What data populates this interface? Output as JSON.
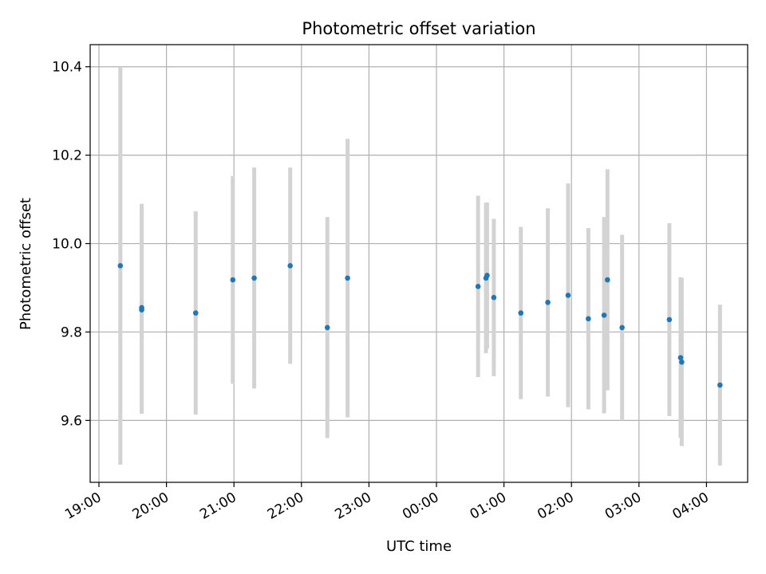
{
  "chart_data": {
    "type": "scatter",
    "title": "Photometric offset variation",
    "xlabel": "UTC time",
    "ylabel": "Photometric offset",
    "x_tick_labels": [
      "19:00",
      "20:00",
      "21:00",
      "22:00",
      "23:00",
      "00:00",
      "01:00",
      "02:00",
      "03:00",
      "04:00"
    ],
    "y_tick_labels": [
      "9.6",
      "9.8",
      "10.0",
      "10.2",
      "10.4"
    ],
    "y_ticks": [
      9.6,
      9.8,
      10.0,
      10.2,
      10.4
    ],
    "xlim": [
      "19:00",
      "04:28"
    ],
    "ylim": [
      9.46,
      10.45
    ],
    "grid": true,
    "marker_color": "#1f77b4",
    "errorbar_color": "#d3d3d3",
    "points": [
      {
        "x": "19:19",
        "y": 9.95,
        "err": 0.45
      },
      {
        "x": "19:38",
        "y": 9.855,
        "err": 0.235
      },
      {
        "x": "19:38",
        "y": 9.85,
        "err": 0.235
      },
      {
        "x": "20:26",
        "y": 9.843,
        "err": 0.23
      },
      {
        "x": "20:59",
        "y": 9.918,
        "err": 0.235
      },
      {
        "x": "21:18",
        "y": 9.922,
        "err": 0.25
      },
      {
        "x": "21:50",
        "y": 9.95,
        "err": 0.222
      },
      {
        "x": "22:23",
        "y": 9.81,
        "err": 0.25
      },
      {
        "x": "22:41",
        "y": 9.922,
        "err": 0.315
      },
      {
        "x": "00:37",
        "y": 9.903,
        "err": 0.205
      },
      {
        "x": "00:44",
        "y": 9.922,
        "err": 0.17
      },
      {
        "x": "00:45",
        "y": 9.928,
        "err": 0.165
      },
      {
        "x": "00:51",
        "y": 9.878,
        "err": 0.178
      },
      {
        "x": "01:15",
        "y": 9.843,
        "err": 0.195
      },
      {
        "x": "01:39",
        "y": 9.867,
        "err": 0.213
      },
      {
        "x": "01:57",
        "y": 9.883,
        "err": 0.253
      },
      {
        "x": "02:15",
        "y": 9.83,
        "err": 0.205
      },
      {
        "x": "02:29",
        "y": 9.838,
        "err": 0.222
      },
      {
        "x": "02:32",
        "y": 9.918,
        "err": 0.25
      },
      {
        "x": "02:45",
        "y": 9.81,
        "err": 0.21
      },
      {
        "x": "03:27",
        "y": 9.828,
        "err": 0.218
      },
      {
        "x": "03:37",
        "y": 9.742,
        "err": 0.182
      },
      {
        "x": "03:38",
        "y": 9.732,
        "err": 0.19
      },
      {
        "x": "04:12",
        "y": 9.68,
        "err": 0.182
      }
    ]
  }
}
